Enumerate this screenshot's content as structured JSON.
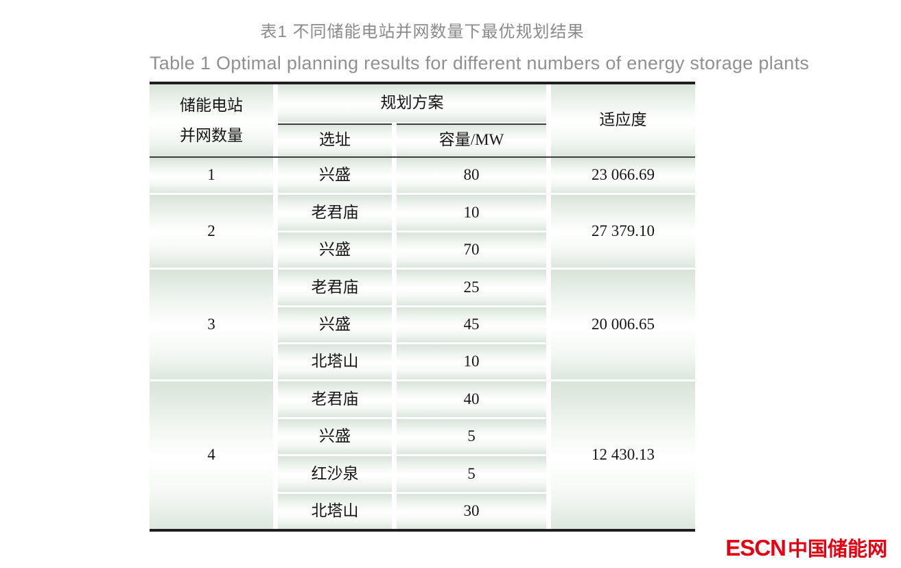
{
  "titles": {
    "zh": "表1  不同储能电站并网数量下最优规划结果",
    "en": "Table 1  Optimal planning results for different numbers of energy storage plants"
  },
  "table": {
    "header": {
      "plants_line1": "储能电站",
      "plants_line2": "并网数量",
      "plan": "规划方案",
      "site": "选址",
      "capacity": "容量/MW",
      "fitness": "适应度"
    },
    "groups": [
      {
        "count": "1",
        "rows": [
          {
            "site": "兴盛",
            "capacity": "80"
          }
        ],
        "fitness": "23 066.69"
      },
      {
        "count": "2",
        "rows": [
          {
            "site": "老君庙",
            "capacity": "10"
          },
          {
            "site": "兴盛",
            "capacity": "70"
          }
        ],
        "fitness": "27 379.10"
      },
      {
        "count": "3",
        "rows": [
          {
            "site": "老君庙",
            "capacity": "25"
          },
          {
            "site": "兴盛",
            "capacity": "45"
          },
          {
            "site": "北塔山",
            "capacity": "10"
          }
        ],
        "fitness": "20 006.65"
      },
      {
        "count": "4",
        "rows": [
          {
            "site": "老君庙",
            "capacity": "40"
          },
          {
            "site": "兴盛",
            "capacity": "5"
          },
          {
            "site": "红沙泉",
            "capacity": "5"
          },
          {
            "site": "北塔山",
            "capacity": "30"
          }
        ],
        "fitness": "12 430.13"
      }
    ]
  },
  "logo": {
    "en": "ESCN",
    "cn": "中国储能网",
    "color": "#e60012"
  },
  "colors": {
    "cell_gradient_edge": "#d8e3d9",
    "cell_gradient_center": "#ffffff",
    "heavy_rule": "#1f1f1f",
    "mid_rule": "#3c3c3c",
    "caption_gray": "#8a8a8a"
  }
}
